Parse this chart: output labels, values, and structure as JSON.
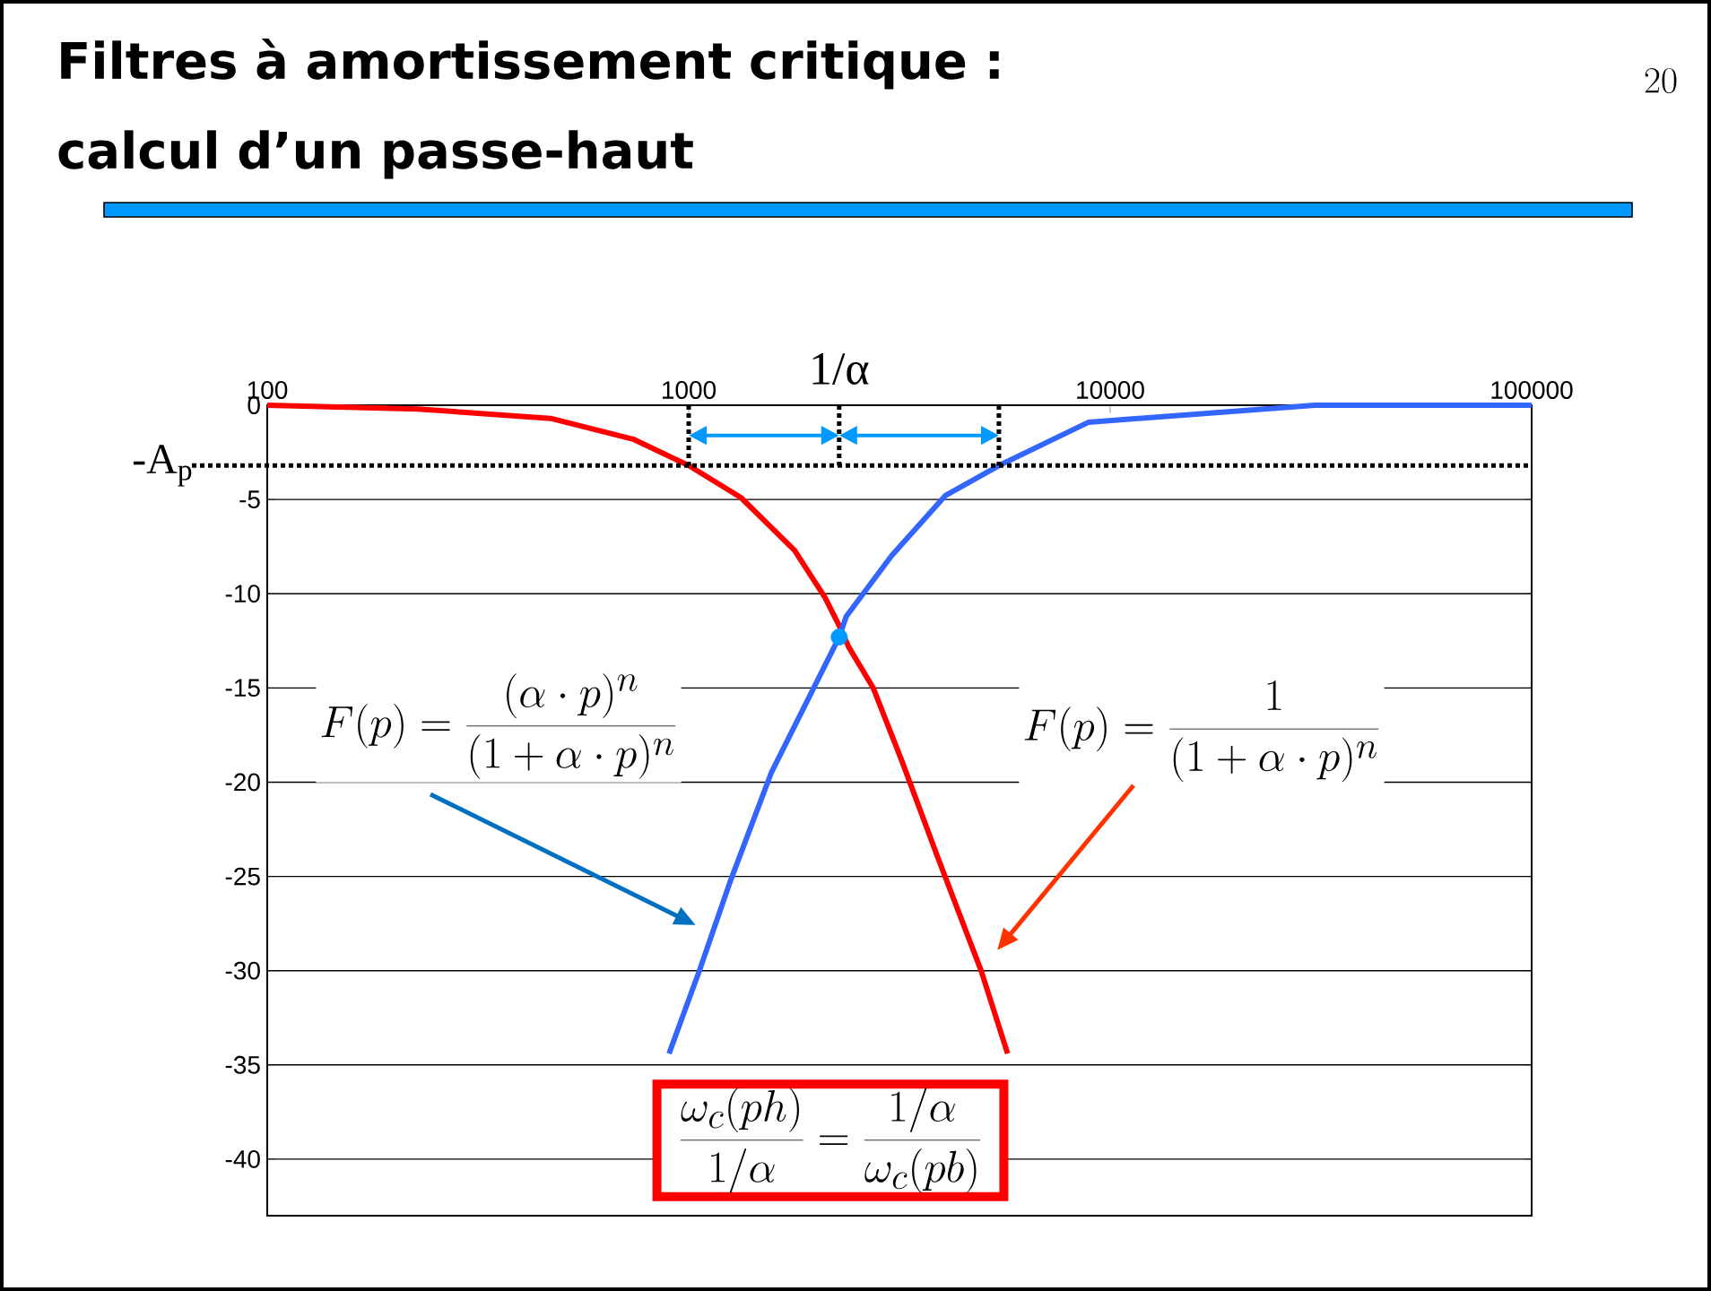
{
  "chart_data": {
    "type": "line",
    "title": "Filtres à amortissement critique : calcul d’un passe-haut",
    "log": "x",
    "xlim": [
      100,
      100000
    ],
    "xticks": [
      100,
      1000,
      10000,
      100000
    ],
    "ylim": [
      -43,
      0
    ],
    "yticks": [
      0,
      -5,
      -10,
      -15,
      -20,
      -25,
      -30,
      -35,
      -40
    ],
    "grid": "y",
    "marker": "none",
    "series": [
      {
        "color": "#ff0000",
        "x": [
          100,
          228,
          470,
          738,
          1000,
          1330,
          1783,
          2105,
          2275,
          2393,
          2740,
          3208,
          3900,
          4940,
          5710
        ],
        "values": [
          0,
          -0.2,
          -0.7,
          -1.8,
          -3.2,
          -4.9,
          -7.7,
          -10.2,
          -11.7,
          -12.8,
          -15.0,
          -18.9,
          -24.0,
          -30.0,
          -34.4
        ]
      },
      {
        "color": "#3366ff",
        "x": [
          898,
          1060,
          1253,
          1570,
          2275,
          2365,
          3025,
          4060,
          5445,
          8890,
          30600,
          100000
        ],
        "values": [
          -34.4,
          -30.0,
          -25.3,
          -19.5,
          -12.3,
          -11.2,
          -8.0,
          -4.8,
          -3.2,
          -0.9,
          0,
          0
        ]
      },
      {
        "type": "scatter",
        "marker": "circle",
        "color": "#0099ff",
        "x": [
          2275
        ],
        "values": [
          -12.3
        ]
      }
    ],
    "ref_lines": [
      {
        "axis": "y",
        "value": -3.2,
        "label": "-A$_{p}$",
        "line_style": "dotted",
        "color": "#000000"
      },
      {
        "axis": "x",
        "value": 2275,
        "label": "1/α",
        "line_style": "dotted",
        "color": "#000000"
      }
    ],
    "annotations": [
      "F(p)=\\frac{(\\alpha\\cdot p)^{n}}{(1+\\alpha\\cdot p)^{n}}",
      "F(p)=\\frac{1}{(1+\\alpha\\cdot p)^{n}}",
      "\\frac{\\omega_c(ph)}{1/\\alpha}=\\frac{1/\\alpha}{\\omega_c(pb)}",
      "20"
    ]
  }
}
